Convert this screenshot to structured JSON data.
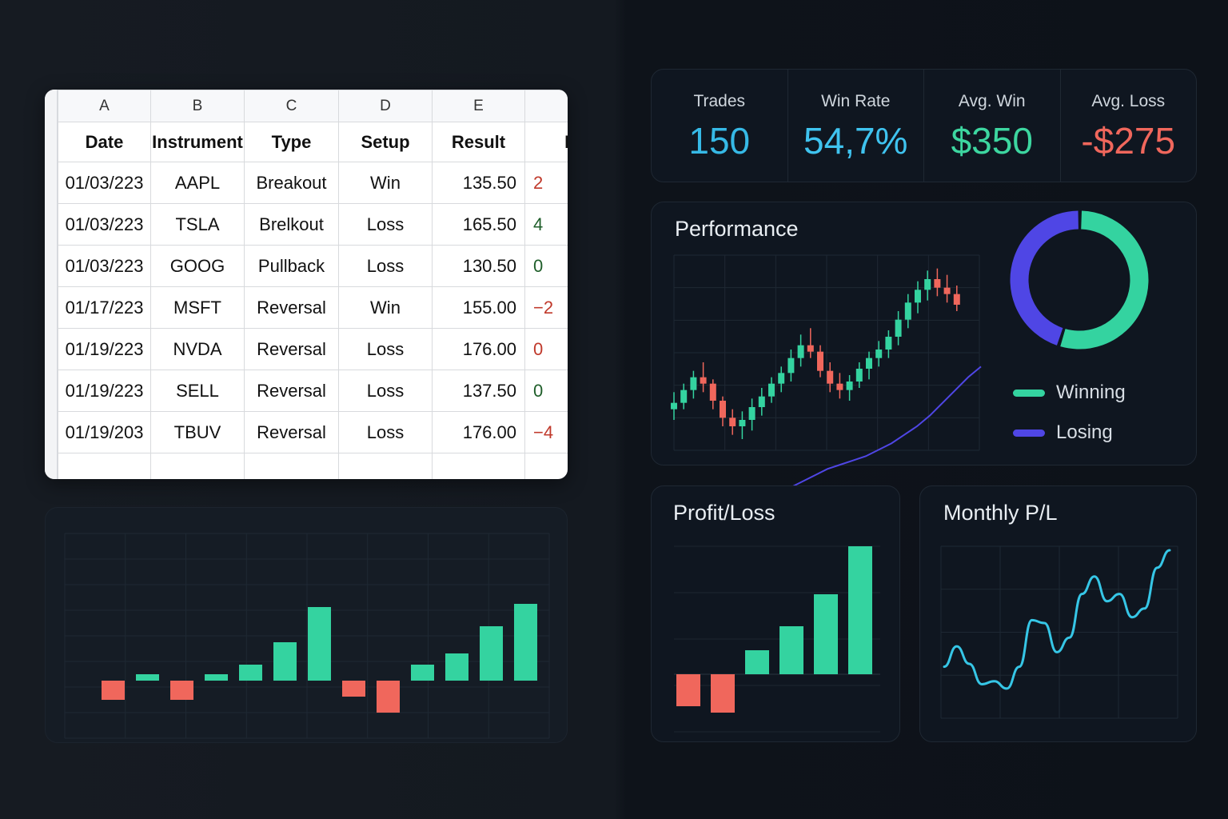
{
  "spreadsheet": {
    "column_letters": [
      "A",
      "B",
      "C",
      "D",
      "E",
      ""
    ],
    "headers": [
      "Date",
      "Instrument",
      "Type",
      "Setup",
      "Result",
      "Pro"
    ],
    "rows": [
      {
        "date": "01/03/223",
        "instrument": "AAPL",
        "type": "Breakout",
        "setup": "Win",
        "result": "135.50",
        "pl": "2",
        "pl_sign": "neg"
      },
      {
        "date": "01/03/223",
        "instrument": "TSLA",
        "type": "Brelkout",
        "setup": "Loss",
        "result": "165.50",
        "pl": "4",
        "pl_sign": "pos"
      },
      {
        "date": "01/03/223",
        "instrument": "GOOG",
        "type": "Pullback",
        "setup": "Loss",
        "result": "130.50",
        "pl": "0",
        "pl_sign": "pos"
      },
      {
        "date": "01/17/223",
        "instrument": "MSFT",
        "type": "Reversal",
        "setup": "Win",
        "result": "155.00",
        "pl": "−2",
        "pl_sign": "neg"
      },
      {
        "date": "01/19/223",
        "instrument": "NVDA",
        "type": "Reversal",
        "setup": "Loss",
        "result": "176.00",
        "pl": "0",
        "pl_sign": "neg"
      },
      {
        "date": "01/19/223",
        "instrument": "SELL",
        "type": "Reversal",
        "setup": "Loss",
        "result": "137.50",
        "pl": "0",
        "pl_sign": "pos"
      },
      {
        "date": "01/19/203",
        "instrument": "TBUV",
        "type": "Reversal",
        "setup": "Loss",
        "result": "176.00",
        "pl": "−4",
        "pl_sign": "neg"
      }
    ]
  },
  "stats": [
    {
      "label": "Trades",
      "value": "150",
      "color": "#36b9e6"
    },
    {
      "label": "Win Rate",
      "value": "54,7%",
      "color": "#3fc3ef"
    },
    {
      "label": "Avg. Win",
      "value": "$350",
      "color": "#3dd6a0"
    },
    {
      "label": "Avg. Loss",
      "value": "-$275",
      "color": "#f0675c"
    }
  ],
  "colors": {
    "win": "#34d3a0",
    "loss": "#f0675c",
    "losing": "#4f46e5",
    "line": "#36c6e6"
  },
  "performance": {
    "title": "Performance",
    "legend": [
      {
        "label": "Winning",
        "color": "#34d3a0"
      },
      {
        "label": "Losing",
        "color": "#4f46e5"
      }
    ],
    "donut": {
      "winning_pct": 54.7,
      "losing_pct": 45.3
    },
    "candles": [
      [
        100,
        108,
        95,
        103
      ],
      [
        103,
        112,
        100,
        109
      ],
      [
        109,
        118,
        105,
        115
      ],
      [
        115,
        122,
        108,
        112
      ],
      [
        112,
        114,
        100,
        104
      ],
      [
        104,
        106,
        92,
        96
      ],
      [
        96,
        100,
        88,
        92
      ],
      [
        92,
        99,
        86,
        95
      ],
      [
        95,
        105,
        90,
        101
      ],
      [
        101,
        110,
        97,
        106
      ],
      [
        106,
        115,
        103,
        112
      ],
      [
        112,
        120,
        108,
        117
      ],
      [
        117,
        128,
        113,
        124
      ],
      [
        124,
        135,
        120,
        130
      ],
      [
        130,
        138,
        124,
        127
      ],
      [
        127,
        130,
        115,
        118
      ],
      [
        118,
        122,
        108,
        112
      ],
      [
        112,
        117,
        105,
        109
      ],
      [
        109,
        116,
        104,
        113
      ],
      [
        113,
        122,
        110,
        119
      ],
      [
        119,
        127,
        114,
        124
      ],
      [
        124,
        132,
        120,
        128
      ],
      [
        128,
        137,
        124,
        134
      ],
      [
        134,
        146,
        130,
        142
      ],
      [
        142,
        154,
        138,
        150
      ],
      [
        150,
        160,
        145,
        156
      ],
      [
        156,
        165,
        151,
        161
      ],
      [
        161,
        166,
        153,
        157
      ],
      [
        157,
        163,
        150,
        154
      ],
      [
        154,
        158,
        146,
        149
      ]
    ],
    "trend": [
      58,
      60,
      63,
      66,
      69,
      72,
      74,
      76,
      78,
      81,
      84,
      88,
      92,
      97,
      103,
      109,
      115,
      120
    ]
  },
  "bottom_chart": {
    "values": [
      -12,
      4,
      -12,
      4,
      10,
      24,
      46,
      -10,
      -20,
      10,
      17,
      34,
      48
    ]
  },
  "profit_loss": {
    "title": "Profit/Loss",
    "values": [
      -20,
      -24,
      15,
      30,
      50,
      80
    ]
  },
  "monthly": {
    "title": "Monthly P/L",
    "values": [
      20,
      34,
      22,
      8,
      10,
      5,
      20,
      52,
      50,
      30,
      40,
      70,
      82,
      65,
      70,
      54,
      60,
      88,
      100
    ]
  }
}
